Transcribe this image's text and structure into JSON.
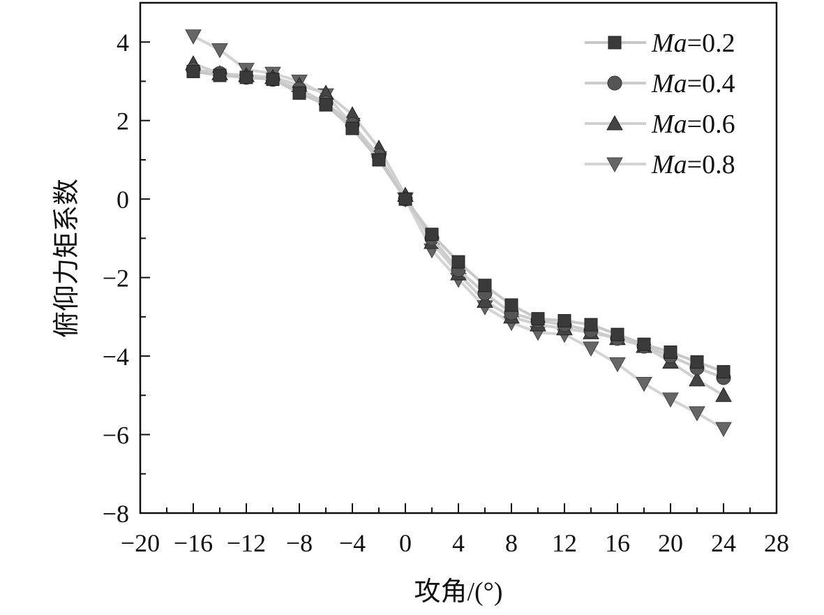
{
  "chart_data": {
    "type": "line",
    "title": "",
    "xlabel": "攻角/(°)",
    "ylabel": "俯仰力矩系数",
    "xlim": [
      -20,
      28
    ],
    "ylim": [
      -8,
      5
    ],
    "x_ticks": [
      -20,
      -16,
      -12,
      -8,
      -4,
      0,
      4,
      8,
      12,
      16,
      20,
      24,
      28
    ],
    "x_tick_labels": [
      "−20",
      "−16",
      "−12",
      "−8",
      "−4",
      "0",
      "4",
      "8",
      "12",
      "16",
      "20",
      "24",
      "28"
    ],
    "y_ticks": [
      -8,
      -6,
      -4,
      -2,
      0,
      2,
      4
    ],
    "y_tick_labels": [
      "−8",
      "−6",
      "−4",
      "−2",
      "0",
      "2",
      "4"
    ],
    "legend_position": "top-right",
    "grid": false,
    "x": [
      -16,
      -14,
      -12,
      -10,
      -8,
      -6,
      -4,
      -2,
      0,
      2,
      4,
      6,
      8,
      10,
      12,
      14,
      16,
      18,
      20,
      22,
      24
    ],
    "series": [
      {
        "name_prefix": "Ma",
        "name_suffix": "=0.2",
        "marker": "square",
        "color": "#3a3a3a",
        "line_color": "#c8c8c8",
        "values": [
          3.25,
          3.15,
          3.1,
          3.05,
          2.7,
          2.4,
          1.8,
          1.0,
          0.0,
          -0.9,
          -1.6,
          -2.2,
          -2.7,
          -3.05,
          -3.1,
          -3.2,
          -3.45,
          -3.7,
          -3.9,
          -4.15,
          -4.4
        ]
      },
      {
        "name_prefix": "Ma",
        "name_suffix": "=0.4",
        "marker": "circle",
        "color": "#555555",
        "line_color": "#cccccc",
        "values": [
          3.3,
          3.2,
          3.1,
          3.05,
          2.8,
          2.45,
          1.9,
          1.1,
          0.0,
          -1.0,
          -1.8,
          -2.4,
          -2.9,
          -3.1,
          -3.2,
          -3.35,
          -3.55,
          -3.75,
          -4.0,
          -4.3,
          -4.55
        ]
      },
      {
        "name_prefix": "Ma",
        "name_suffix": "=0.6",
        "marker": "triangle-up",
        "color": "#444444",
        "line_color": "#d0d0d0",
        "values": [
          3.45,
          3.2,
          3.15,
          3.1,
          2.9,
          2.7,
          2.15,
          1.3,
          0.1,
          -1.1,
          -1.9,
          -2.6,
          -3.0,
          -3.2,
          -3.3,
          -3.4,
          -3.55,
          -3.75,
          -4.15,
          -4.6,
          -5.0
        ]
      },
      {
        "name_prefix": "Ma",
        "name_suffix": "=0.8",
        "marker": "triangle-down",
        "color": "#666666",
        "line_color": "#d4d4d4",
        "values": [
          4.15,
          3.8,
          3.3,
          3.2,
          3.0,
          2.65,
          1.9,
          1.05,
          0.0,
          -1.3,
          -2.05,
          -2.75,
          -3.15,
          -3.4,
          -3.45,
          -3.8,
          -4.2,
          -4.7,
          -5.1,
          -5.45,
          -5.85
        ]
      }
    ]
  }
}
